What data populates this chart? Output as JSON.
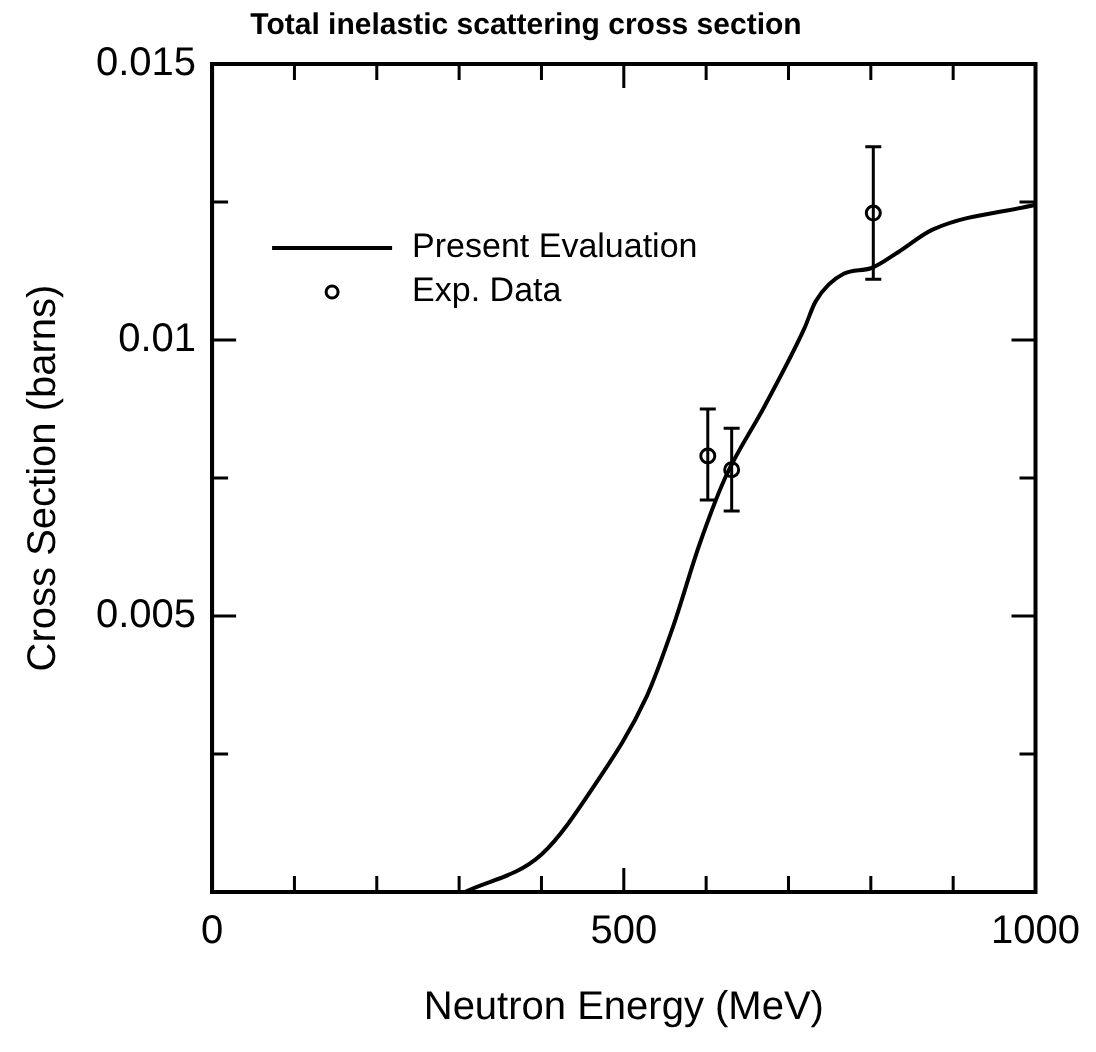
{
  "chart_data": {
    "type": "line",
    "title": "Total inelastic scattering cross section",
    "xlabel": "Neutron Energy (MeV)",
    "ylabel": "Cross Section (barns)",
    "xlim": [
      0,
      1000
    ],
    "ylim": [
      0,
      0.015
    ],
    "xticks": [
      0,
      {
        "value": 100,
        "label": null
      },
      {
        "value": 200,
        "label": null
      },
      {
        "value": 300,
        "label": null
      },
      {
        "value": 400,
        "label": null
      },
      500,
      {
        "value": 600,
        "label": null
      },
      {
        "value": 700,
        "label": null
      },
      {
        "value": 800,
        "label": null
      },
      {
        "value": 900,
        "label": null
      },
      1000
    ],
    "yticks": [
      {
        "value": 0,
        "label": null
      },
      {
        "value": 0.0025,
        "label": null
      },
      0.005,
      {
        "value": 0.0075,
        "label": null
      },
      0.01,
      {
        "value": 0.0125,
        "label": null
      },
      0.015
    ],
    "grid": false,
    "legend": "top left",
    "series": [
      {
        "name": "Present Evaluation",
        "type": "line",
        "color": "#000000",
        "marker": "none",
        "line_style": "solid",
        "x": [
          307,
          400,
          463,
          528,
          559,
          592,
          623,
          671,
          719,
          733,
          767,
          800,
          834,
          875,
          1000
        ],
        "values": [
          0,
          0.00068,
          0.0019,
          0.00355,
          0.00477,
          0.0063,
          0.0075,
          0.0088,
          0.0102,
          0.0107,
          0.0112,
          0.0113,
          0.0116,
          0.012,
          0.01245
        ]
      },
      {
        "name": "Exp. Data",
        "type": "scatter",
        "color": "#000000",
        "marker": "circle",
        "x": [
          602,
          631,
          803
        ],
        "values": [
          0.0079,
          0.00765,
          0.0123
        ],
        "errors": [
          [
            0.0071,
            0.00875
          ],
          [
            0.0069,
            0.0084
          ],
          [
            0.0111,
            0.0135
          ]
        ]
      }
    ]
  }
}
